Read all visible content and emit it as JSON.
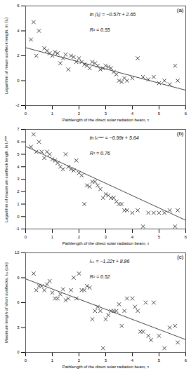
{
  "chart_data": [
    {
      "type": "scatter",
      "panel_label": "(a)",
      "xlabel": "Pathlength of the direct solar radiation beam, τ",
      "ylabel": "Logarithm of mean sunfleck length, ln ⟨lₛ⟩",
      "annotations": [
        "ln ⟨lⱼ⟩ = −0.57τ + 2.65",
        "R² = 0.55"
      ],
      "xlim": [
        0,
        6
      ],
      "ylim": [
        -2,
        6
      ],
      "xticks": [
        0,
        1,
        2,
        3,
        4,
        5,
        6
      ],
      "yticks": [
        -2,
        0,
        2,
        4,
        6
      ],
      "grid": false,
      "marker": "x",
      "color": "#444444",
      "x": [
        0.2,
        0.3,
        0.4,
        0.5,
        0.7,
        0.8,
        0.9,
        1.0,
        1.1,
        1.2,
        1.3,
        1.4,
        1.5,
        1.6,
        1.7,
        1.8,
        1.9,
        2.0,
        2.1,
        2.2,
        2.3,
        2.4,
        2.5,
        2.6,
        2.7,
        2.8,
        2.9,
        3.0,
        3.1,
        3.2,
        3.3,
        3.4,
        3.5,
        3.6,
        3.7,
        3.8,
        4.0,
        4.2,
        4.4,
        4.6,
        4.8,
        5.0,
        5.2,
        5.4,
        5.6,
        5.7
      ],
      "values": [
        3.3,
        4.7,
        2.0,
        4.0,
        2.6,
        2.4,
        2.2,
        2.0,
        2.3,
        2.2,
        1.4,
        1.8,
        2.1,
        0.9,
        2.0,
        1.9,
        1.5,
        1.8,
        1.5,
        1.3,
        1.2,
        1.0,
        1.5,
        1.4,
        1.2,
        0.9,
        1.0,
        1.2,
        1.1,
        1.0,
        0.7,
        0.5,
        0.0,
        -0.1,
        0.2,
        0.0,
        0.2,
        1.8,
        0.3,
        0.1,
        0.3,
        -0.2,
        0.0,
        -0.3,
        1.2,
        0.0
      ],
      "fit_line": {
        "color": "#444444",
        "x": [
          0,
          6
        ],
        "values": [
          2.65,
          -0.77
        ]
      }
    },
    {
      "type": "scatter",
      "panel_label": "(b)",
      "xlabel": "Pathlength of the direct solar radiation beam, τ",
      "ylabel": "Logarithm of maximum sunfleck length, ln lₛᵐᵃˣ",
      "annotations": [
        "ln lₛᵐᵃˣ = −0.99τ + 5.64",
        "R² = 0.76"
      ],
      "xlim": [
        0,
        6
      ],
      "ylim": [
        -1,
        7
      ],
      "xticks": [
        0,
        1,
        2,
        3,
        4,
        5,
        6
      ],
      "yticks": [
        -1,
        0,
        1,
        2,
        3,
        4,
        5,
        6,
        7
      ],
      "grid": false,
      "marker": "x",
      "color": "#444444",
      "x": [
        0.2,
        0.3,
        0.4,
        0.5,
        0.6,
        0.7,
        0.8,
        0.9,
        1.0,
        1.1,
        1.2,
        1.3,
        1.4,
        1.5,
        1.6,
        1.7,
        1.8,
        1.9,
        2.0,
        2.1,
        2.2,
        2.3,
        2.4,
        2.5,
        2.6,
        2.7,
        2.8,
        2.9,
        3.0,
        3.1,
        3.2,
        3.3,
        3.4,
        3.5,
        3.6,
        3.7,
        3.8,
        4.0,
        4.2,
        4.4,
        4.6,
        4.8,
        5.0,
        5.2,
        5.4,
        5.6,
        5.7
      ],
      "values": [
        5.6,
        6.6,
        5.2,
        6.0,
        5.2,
        4.7,
        5.2,
        5.0,
        4.6,
        4.5,
        4.3,
        4.0,
        3.8,
        5.0,
        4.0,
        3.8,
        3.7,
        4.5,
        3.5,
        3.3,
        1.0,
        2.5,
        2.4,
        2.8,
        2.8,
        2.5,
        2.2,
        1.5,
        1.8,
        1.7,
        1.5,
        1.5,
        1.2,
        1.0,
        1.0,
        0.5,
        0.5,
        0.3,
        0.5,
        -0.8,
        0.3,
        0.3,
        0.3,
        0.3,
        0.5,
        -0.8,
        0.5
      ],
      "fit_line": {
        "color": "#444444",
        "x": [
          0,
          6
        ],
        "values": [
          5.64,
          -0.3
        ]
      }
    },
    {
      "type": "scatter",
      "panel_label": "(c)",
      "xlabel": "Pathlength of the direct solar radiation beam, τ",
      "ylabel": "Maximum length of short sunflecks, lₛₛ (cm)",
      "annotations": [
        "lₛₛ = −1.22τ + 8.86",
        "R² = 0.52"
      ],
      "xlim": [
        0,
        6
      ],
      "ylim": [
        0,
        12
      ],
      "xticks": [
        0,
        1,
        2,
        3,
        4,
        5,
        6
      ],
      "yticks": [
        0,
        3,
        6,
        9,
        12
      ],
      "grid": false,
      "marker": "x",
      "color": "#444444",
      "x": [
        0.3,
        0.4,
        0.5,
        0.6,
        0.7,
        0.8,
        0.9,
        1.0,
        1.1,
        1.2,
        1.3,
        1.4,
        1.5,
        1.6,
        1.7,
        1.8,
        1.9,
        2.0,
        2.1,
        2.2,
        2.3,
        2.4,
        2.5,
        2.6,
        2.7,
        2.8,
        2.9,
        3.0,
        3.1,
        3.2,
        3.3,
        3.4,
        3.5,
        3.6,
        3.7,
        3.8,
        4.0,
        4.1,
        4.2,
        4.3,
        4.4,
        4.5,
        4.6,
        4.7,
        4.8,
        5.0,
        5.2,
        5.4,
        5.6,
        5.7
      ],
      "values": [
        9.5,
        7.5,
        8.0,
        8.0,
        7.5,
        8.2,
        8.6,
        7.2,
        6.5,
        6.5,
        7.0,
        7.6,
        6.3,
        6.5,
        7.5,
        9.0,
        6.5,
        9.5,
        7.5,
        7.5,
        8.0,
        7.8,
        4.0,
        5.0,
        5.5,
        5.0,
        0.5,
        4.0,
        4.5,
        5.0,
        5.0,
        5.0,
        5.8,
        3.2,
        5.0,
        6.5,
        6.5,
        5.5,
        5.0,
        2.5,
        2.5,
        6.0,
        2.0,
        1.5,
        6.0,
        2.0,
        0.5,
        3.0,
        3.2,
        1.2
      ],
      "fit_line": {
        "color": "#444444",
        "x": [
          0,
          6
        ],
        "values": [
          8.86,
          1.54
        ]
      }
    }
  ]
}
